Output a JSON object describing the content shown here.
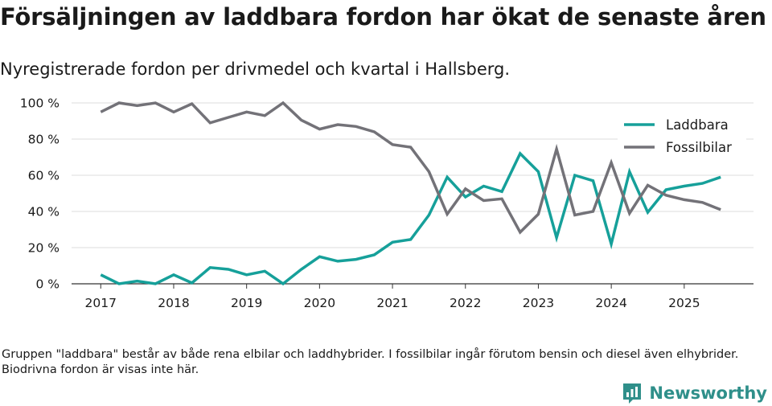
{
  "header": {
    "title": "Försäljningen av laddbara fordon har ökat de senaste åren",
    "subtitle": "Nyregistrerade fordon per drivmedel och kvartal i Hallsberg."
  },
  "footer": {
    "note": "Gruppen \"laddbara\" består av både rena elbilar och laddhybrider. I fossilbilar ingår förutom bensin och diesel även elhybrider. Biodrivna fordon är visas inte här.",
    "brand": "Newsworthy"
  },
  "chart_data": {
    "type": "line",
    "x": [
      2017.0,
      2017.25,
      2017.5,
      2017.75,
      2018.0,
      2018.25,
      2018.5,
      2018.75,
      2019.0,
      2019.25,
      2019.5,
      2019.75,
      2020.0,
      2020.25,
      2020.5,
      2020.75,
      2021.0,
      2021.25,
      2021.5,
      2021.75,
      2022.0,
      2022.25,
      2022.5,
      2022.75,
      2023.0,
      2023.25,
      2023.5,
      2023.75,
      2024.0,
      2024.25,
      2024.5,
      2024.75,
      2025.0,
      2025.25,
      2025.5
    ],
    "series": [
      {
        "name": "Laddbara",
        "color": "#16a09a",
        "values": [
          5,
          0,
          1.5,
          0,
          5,
          0.5,
          9,
          8,
          5,
          7,
          0,
          8,
          15,
          12.5,
          13.5,
          16,
          23,
          24.5,
          38,
          59,
          48,
          54,
          51,
          72,
          62,
          25.5,
          60,
          57,
          22,
          62,
          39.5,
          52,
          54,
          55.5,
          59
        ]
      },
      {
        "name": "Fossilbilar",
        "color": "#737278",
        "values": [
          95,
          100,
          98.5,
          100,
          95,
          99.5,
          89,
          92,
          95,
          93,
          100,
          90.5,
          85.5,
          88,
          87,
          84,
          77,
          75.5,
          62,
          38.5,
          52.5,
          46,
          47,
          28.5,
          38.5,
          74.5,
          38,
          40,
          67,
          39,
          54.5,
          49,
          46.5,
          45,
          41
        ]
      }
    ],
    "xticks": [
      "2017",
      "2018",
      "2019",
      "2020",
      "2021",
      "2022",
      "2023",
      "2024",
      "2025"
    ],
    "yticks": [
      "0 %",
      "20 %",
      "40 %",
      "60 %",
      "80 %",
      "100 %"
    ],
    "xlim": [
      2016.6,
      2025.95
    ],
    "ylim": [
      0,
      100
    ],
    "grid": true,
    "legend": "top-right",
    "xlabel": "",
    "ylabel": ""
  }
}
